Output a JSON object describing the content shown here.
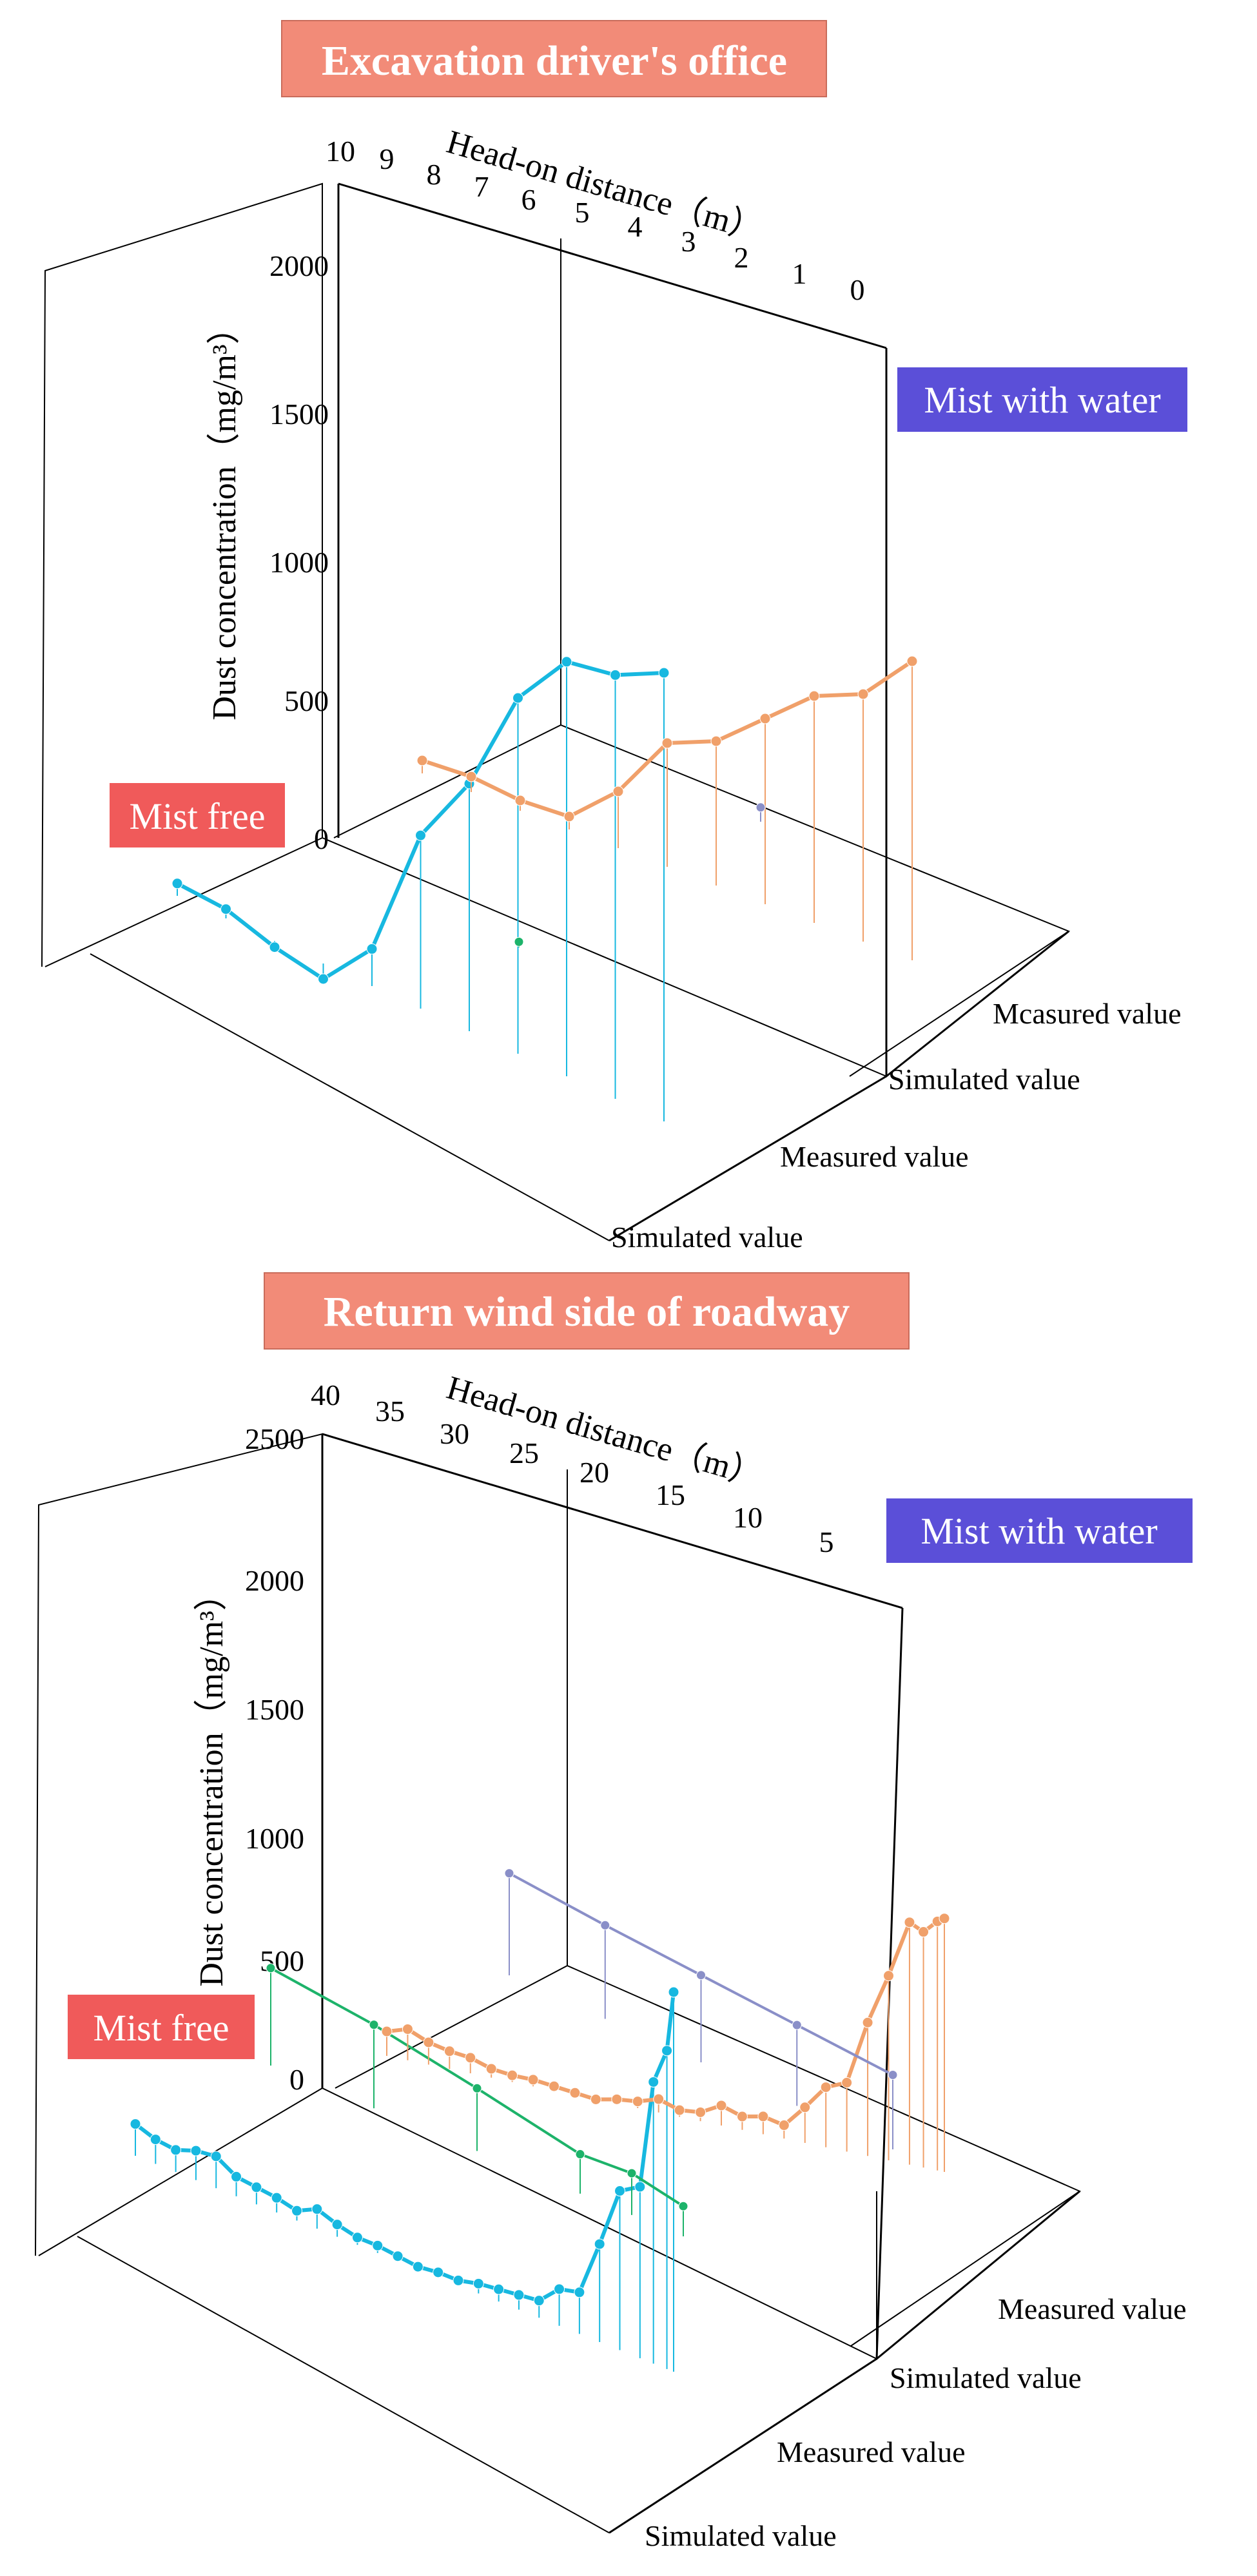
{
  "colors": {
    "title_box": "#f28b78",
    "mist_free_box": "#f05a5a",
    "mist_water_box": "#5b4fd8",
    "simulated_free": "#17b8e0",
    "measured_free": "#1db36a",
    "simulated_water": "#f0a06a",
    "measured_water": "#8a8fc8"
  },
  "chart_data": [
    {
      "type": "line",
      "title": "Excavation driver's office",
      "xlabel": "Head-on distance（m）",
      "zlabel": "Dust concentration（mg/m³）",
      "condition_labels": {
        "free": "Mist free",
        "water": "Mist with water"
      },
      "categories": [
        "Simulated value",
        "Measured value",
        "Simulated value",
        "Mcasured value"
      ],
      "x_ticks": [
        "10",
        "9",
        "8",
        "7",
        "6",
        "5",
        "4",
        "3",
        "2",
        "1",
        "0"
      ],
      "z_ticks": [
        "0",
        "500",
        "1000",
        "1500",
        "2000"
      ],
      "xlim": [
        10,
        0
      ],
      "zlim": [
        0,
        2200
      ],
      "series": [
        {
          "name": "Simulated value",
          "condition": "free",
          "x": [
            10,
            9,
            8,
            7,
            6,
            5,
            4,
            3,
            2,
            1,
            0
          ],
          "y": [
            40,
            30,
            -20,
            -50,
            120,
            560,
            800,
            1150,
            1340,
            1370,
            1450
          ]
        },
        {
          "name": "Measured value",
          "condition": "free",
          "x": [
            5
          ],
          "y": [
            20
          ]
        },
        {
          "name": "Simulated value",
          "condition": "water",
          "x": [
            10,
            9,
            8,
            7,
            6,
            5,
            4,
            3,
            2,
            1,
            0
          ],
          "y": [
            50,
            60,
            40,
            50,
            220,
            480,
            560,
            720,
            880,
            960,
            1160
          ]
        },
        {
          "name": "Measured value",
          "condition": "water",
          "x": [
            5
          ],
          "y": [
            60
          ]
        }
      ]
    },
    {
      "type": "line",
      "title": "Return wind side of roadway",
      "xlabel": "Head-on distance（m）",
      "zlabel": "Dust concentration（mg/m³）",
      "condition_labels": {
        "free": "Mist free",
        "water": "Mist with water"
      },
      "categories": [
        "Simulated value",
        "Measured value",
        "Simulated value",
        "Measured value"
      ],
      "x_ticks": [
        "40",
        "35",
        "30",
        "25",
        "20",
        "15",
        "10",
        "5"
      ],
      "z_ticks": [
        "0",
        "500",
        "1000",
        "1500",
        "2000",
        "2500"
      ],
      "xlim": [
        40,
        0
      ],
      "zlim": [
        0,
        2500
      ],
      "series": [
        {
          "name": "Simulated value",
          "condition": "free",
          "x": [
            40,
            38.5,
            37,
            35.5,
            34,
            32.5,
            31,
            29.5,
            28,
            26.5,
            25,
            23.5,
            22,
            20.5,
            19,
            17.5,
            16,
            14.5,
            13,
            11.5,
            10,
            8.5,
            7,
            5.5,
            4,
            2.5,
            1.5,
            0.5,
            0
          ],
          "y": [
            130,
            100,
            90,
            120,
            130,
            80,
            70,
            60,
            40,
            80,
            50,
            30,
            30,
            20,
            10,
            20,
            20,
            40,
            50,
            60,
            70,
            150,
            170,
            400,
            650,
            700,
            1150,
            1300,
            1550
          ]
        },
        {
          "name": "Measured value",
          "condition": "free",
          "x": [
            40,
            30,
            20,
            10,
            5,
            0
          ],
          "y": [
            420,
            360,
            270,
            170,
            180,
            130
          ]
        },
        {
          "name": "Simulated value",
          "condition": "water",
          "x": [
            40,
            38.5,
            37,
            35.5,
            34,
            32.5,
            31,
            29.5,
            28,
            26.5,
            25,
            23.5,
            22,
            20.5,
            19,
            17.5,
            16,
            14.5,
            13,
            11.5,
            10,
            8.5,
            7,
            5.5,
            4,
            2.5,
            1.5,
            0.5,
            0
          ],
          "y": [
            110,
            140,
            100,
            80,
            70,
            40,
            30,
            30,
            20,
            10,
            0,
            20,
            30,
            60,
            30,
            40,
            90,
            60,
            80,
            60,
            160,
            270,
            310,
            600,
            830,
            1090,
            1060,
            1120,
            1140
          ]
        },
        {
          "name": "Measured value",
          "condition": "water",
          "x": [
            40,
            30,
            20,
            10,
            0
          ],
          "y": [
            480,
            440,
            410,
            380,
            350
          ]
        }
      ]
    }
  ]
}
